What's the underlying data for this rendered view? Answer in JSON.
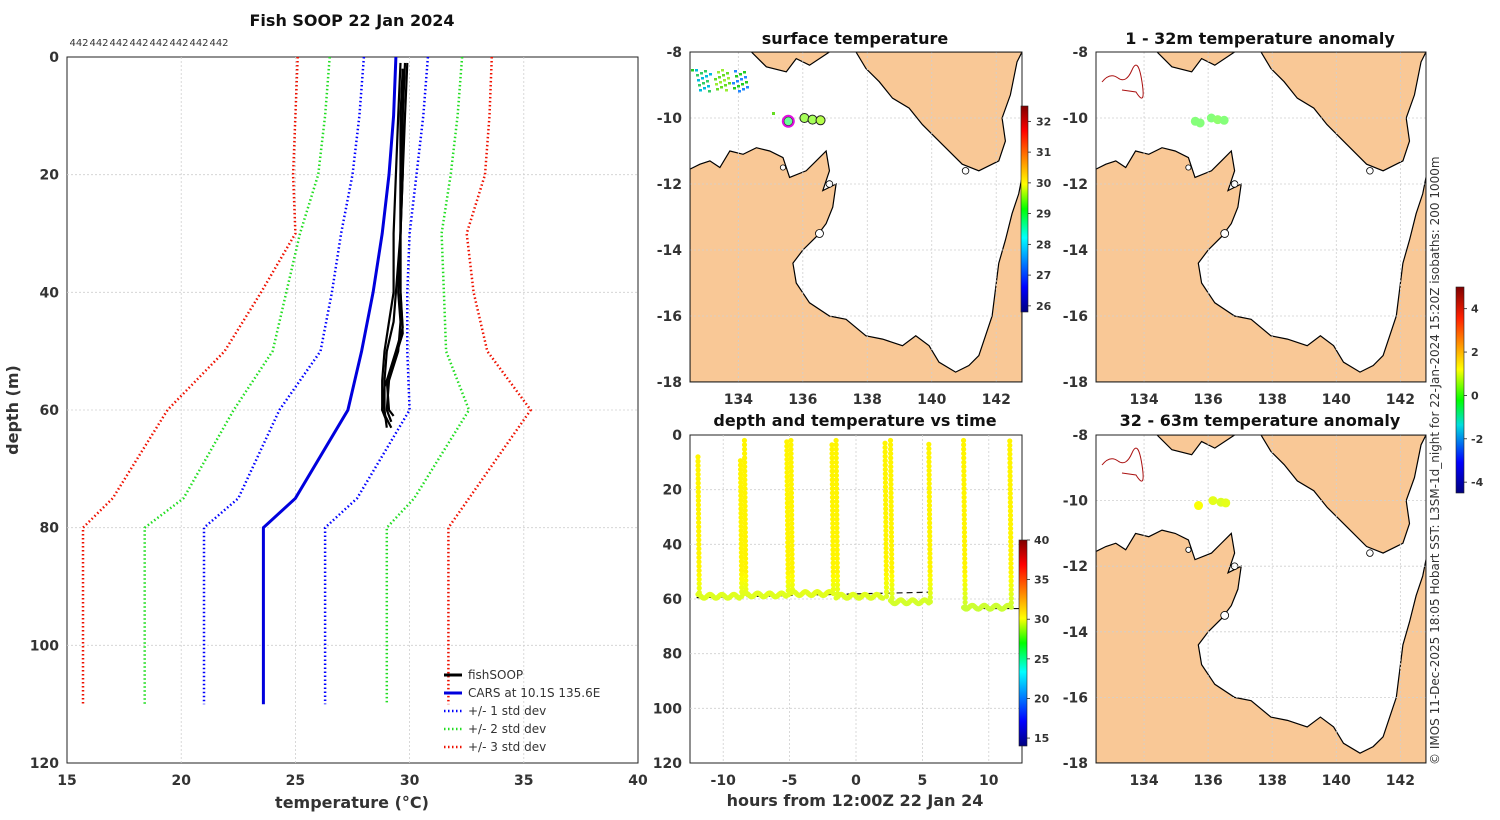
{
  "colors": {
    "land": "#f9c896",
    "fishsoop": "#000000",
    "cars": "#0000dd",
    "std1": "#0000ff",
    "std2": "#22dd22",
    "std3": "#ee1100"
  },
  "count_labels": [
    "442",
    "442",
    "442",
    "442",
    "442",
    "442",
    "442",
    "442"
  ],
  "chart_data": [
    {
      "id": "profile",
      "type": "line",
      "title": "Fish SOOP 22 Jan 2024",
      "xlabel": "temperature (°C)",
      "ylabel": "depth (m)",
      "xlim": [
        15,
        40
      ],
      "ylim": [
        120,
        0
      ],
      "xticks": [
        15,
        20,
        25,
        30,
        35,
        40
      ],
      "yticks": [
        0,
        20,
        40,
        60,
        80,
        100,
        120
      ],
      "legend": [
        {
          "label": "fishSOOP",
          "key": "fishsoop",
          "style": "solid"
        },
        {
          "label": "CARS at 10.1S 135.6E",
          "key": "cars",
          "style": "solid"
        },
        {
          "label": "+/- 1 std dev",
          "key": "std1",
          "style": "dotted"
        },
        {
          "label": "+/- 2 std dev",
          "key": "std2",
          "style": "dotted"
        },
        {
          "label": "+/- 3 std dev",
          "key": "std3",
          "style": "dotted"
        }
      ],
      "series": [
        {
          "name": "CARS mean",
          "key": "cars",
          "style": "solid",
          "depth": [
            0,
            10,
            20,
            30,
            40,
            50,
            60,
            75,
            80,
            110
          ],
          "temp": [
            29.4,
            29.3,
            29.1,
            28.8,
            28.4,
            27.9,
            27.3,
            25.0,
            23.6,
            23.6
          ]
        },
        {
          "name": "-1 std",
          "key": "std1",
          "style": "dotted",
          "depth": [
            0,
            10,
            20,
            30,
            40,
            50,
            60,
            75,
            80,
            110
          ],
          "temp": [
            28.0,
            27.8,
            27.5,
            27.0,
            26.6,
            26.1,
            24.3,
            22.5,
            21.0,
            21.0
          ]
        },
        {
          "name": "+1 std",
          "key": "std1",
          "style": "dotted",
          "depth": [
            0,
            10,
            20,
            30,
            40,
            50,
            60,
            75,
            80,
            110
          ],
          "temp": [
            30.8,
            30.6,
            30.3,
            30.0,
            29.9,
            29.9,
            30.0,
            27.7,
            26.3,
            26.3
          ]
        },
        {
          "name": "-2 std",
          "key": "std2",
          "style": "dotted",
          "depth": [
            0,
            10,
            20,
            30,
            40,
            50,
            60,
            75,
            80,
            110
          ],
          "temp": [
            26.5,
            26.3,
            26.0,
            25.2,
            24.6,
            24.0,
            22.3,
            20.1,
            18.4,
            18.4
          ]
        },
        {
          "name": "+2 std",
          "key": "std2",
          "style": "dotted",
          "depth": [
            0,
            10,
            20,
            30,
            40,
            50,
            60,
            75,
            80,
            110
          ],
          "temp": [
            32.3,
            32.1,
            31.8,
            31.4,
            31.5,
            31.6,
            32.6,
            30.2,
            29.0,
            29.0
          ]
        },
        {
          "name": "-3 std",
          "key": "std3",
          "style": "dotted",
          "depth": [
            0,
            10,
            20,
            30,
            40,
            50,
            60,
            75,
            80,
            110
          ],
          "temp": [
            25.1,
            25.0,
            24.9,
            25.0,
            23.5,
            21.9,
            19.4,
            17.0,
            15.7,
            15.7
          ]
        },
        {
          "name": "+3 std",
          "key": "std3",
          "style": "dotted",
          "depth": [
            0,
            10,
            20,
            30,
            40,
            50,
            60,
            75,
            80,
            110
          ],
          "temp": [
            33.6,
            33.5,
            33.3,
            32.5,
            32.8,
            33.4,
            35.3,
            32.6,
            31.7,
            31.7
          ]
        }
      ],
      "fishsoop_profiles": [
        {
          "depth": [
            1,
            10,
            20,
            30,
            40,
            45,
            50,
            55,
            60,
            63
          ],
          "temp": [
            29.9,
            29.8,
            29.7,
            29.6,
            29.4,
            29.3,
            29.0,
            28.9,
            28.9,
            29.0
          ]
        },
        {
          "depth": [
            2,
            10,
            20,
            30,
            40,
            45,
            50,
            55,
            60,
            62
          ],
          "temp": [
            29.7,
            29.6,
            29.6,
            29.6,
            29.5,
            29.6,
            29.5,
            29.1,
            29.0,
            29.2
          ]
        },
        {
          "depth": [
            1,
            10,
            20,
            30,
            40,
            45,
            50,
            55,
            60,
            63
          ],
          "temp": [
            29.6,
            29.5,
            29.4,
            29.3,
            29.3,
            29.1,
            28.9,
            28.8,
            28.8,
            29.2
          ]
        },
        {
          "depth": [
            1,
            10,
            20,
            30,
            40,
            46,
            50,
            55,
            60,
            61
          ],
          "temp": [
            29.8,
            29.7,
            29.7,
            29.6,
            29.6,
            29.7,
            29.4,
            29.0,
            29.1,
            29.3
          ]
        },
        {
          "depth": [
            2,
            10,
            20,
            30,
            40,
            47,
            52,
            56,
            60,
            62
          ],
          "temp": [
            29.7,
            29.7,
            29.6,
            29.6,
            29.6,
            29.7,
            29.3,
            28.9,
            28.8,
            29.0
          ]
        }
      ]
    },
    {
      "id": "timeseries",
      "type": "scatter",
      "title": "depth and temperature vs time",
      "xlabel": "hours from 12:00Z 22 Jan 24",
      "xlim": [
        -12.5,
        12.5
      ],
      "ylim": [
        120,
        0
      ],
      "xticks": [
        -10,
        -5,
        0,
        5,
        10
      ],
      "yticks": [
        0,
        20,
        40,
        60,
        80,
        100,
        120
      ],
      "colorbar": {
        "min": 14,
        "max": 40,
        "ticks": [
          15,
          20,
          25,
          30,
          35,
          40
        ]
      },
      "drops": [
        {
          "t0": -11.9,
          "t1": -8.7,
          "up": -8.6,
          "top": 8,
          "bottom": 59
        },
        {
          "t0": -8.4,
          "t1": -5.2,
          "up": -5.1,
          "top": 2,
          "bottom": 58.5
        },
        {
          "t0": -4.9,
          "t1": -1.9,
          "up": -1.7,
          "top": 2,
          "bottom": 58
        },
        {
          "t0": -1.5,
          "t1": 2.1,
          "up": 2.3,
          "top": 2,
          "bottom": 59
        },
        {
          "t0": 2.6,
          "t1": 5.5,
          "up": 5.6,
          "top": 2,
          "bottom": 61
        },
        {
          "t0": 8.1,
          "t1": 11.5,
          "up": 11.7,
          "top": 2,
          "bottom": 63
        }
      ],
      "bottom_line": [
        {
          "t": [
            -12,
            5.6
          ],
          "d": [
            59.5,
            57.5
          ]
        },
        {
          "t": [
            8.1,
            12.5
          ],
          "d": [
            63.5,
            63.5
          ]
        }
      ]
    },
    {
      "id": "map_sst",
      "type": "heatmap",
      "title": "surface temperature",
      "lon_ticks": [
        134,
        136,
        138,
        140,
        142
      ],
      "lat_ticks": [
        -8,
        -10,
        -12,
        -14,
        -16,
        -18
      ],
      "lon_range": [
        132.5,
        142.8
      ],
      "lat_range": [
        -18,
        -8
      ],
      "colorbar": {
        "min": 25.8,
        "max": 32.5,
        "ticks": [
          26,
          27,
          28,
          29,
          30,
          31,
          32
        ]
      },
      "points": [
        {
          "lon": 135.55,
          "lat": -10.1,
          "value": 29.0,
          "highlight": true
        },
        {
          "lon": 136.05,
          "lat": -10.0,
          "value": 29.4
        },
        {
          "lon": 136.3,
          "lat": -10.05,
          "value": 29.4
        },
        {
          "lon": 136.55,
          "lat": -10.07,
          "value": 29.5
        }
      ]
    },
    {
      "id": "map_anom1",
      "type": "heatmap",
      "title": "1 - 32m temperature anomaly",
      "lon_ticks": [
        134,
        136,
        138,
        140,
        142
      ],
      "lat_ticks": [
        -8,
        -10,
        -12,
        -14,
        -16,
        -18
      ],
      "lon_range": [
        132.5,
        142.8
      ],
      "lat_range": [
        -18,
        -8
      ],
      "points": [
        {
          "lon": 135.6,
          "lat": -10.1,
          "value": 0.3
        },
        {
          "lon": 135.75,
          "lat": -10.15,
          "value": 0.3
        },
        {
          "lon": 136.1,
          "lat": -10.0,
          "value": 0.3
        },
        {
          "lon": 136.3,
          "lat": -10.05,
          "value": 0.4
        },
        {
          "lon": 136.5,
          "lat": -10.07,
          "value": 0.3
        }
      ]
    },
    {
      "id": "map_anom2",
      "type": "heatmap",
      "title": "32 - 63m temperature anomaly",
      "lon_ticks": [
        134,
        136,
        138,
        140,
        142
      ],
      "lat_ticks": [
        -8,
        -10,
        -12,
        -14,
        -16,
        -18
      ],
      "lon_range": [
        132.5,
        142.8
      ],
      "lat_range": [
        -18,
        -8
      ],
      "colorbar": {
        "min": -4.5,
        "max": 5,
        "ticks": [
          -4,
          -2,
          0,
          2,
          4
        ]
      },
      "points": [
        {
          "lon": 135.7,
          "lat": -10.15,
          "value": 1.4
        },
        {
          "lon": 136.15,
          "lat": -10.0,
          "value": 1.2
        },
        {
          "lon": 136.4,
          "lat": -10.05,
          "value": 1.1
        },
        {
          "lon": 136.55,
          "lat": -10.07,
          "value": 1.2
        }
      ]
    }
  ],
  "side_caption": "© IMOS 11-Dec-2025 18:05 Hobart SST: L3SM-1d_night for 22-Jan-2024 15:20Z isobaths: 200  1000m"
}
